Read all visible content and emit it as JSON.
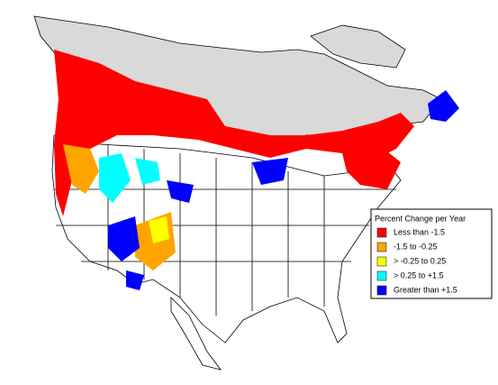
{
  "legend": {
    "title": "Percent Change per Year",
    "entries": [
      {
        "label": "Less than -1.5",
        "color": "#ff0000"
      },
      {
        "label": "-1.5 to -0.25",
        "color": "#ffa500"
      },
      {
        "label": "> -0.25 to 0.25",
        "color": "#ffff00"
      },
      {
        "label": "> 0.25 to +1.5",
        "color": "#00ffff"
      },
      {
        "label": "Greater than +1.5",
        "color": "#0000ff"
      }
    ]
  }
}
